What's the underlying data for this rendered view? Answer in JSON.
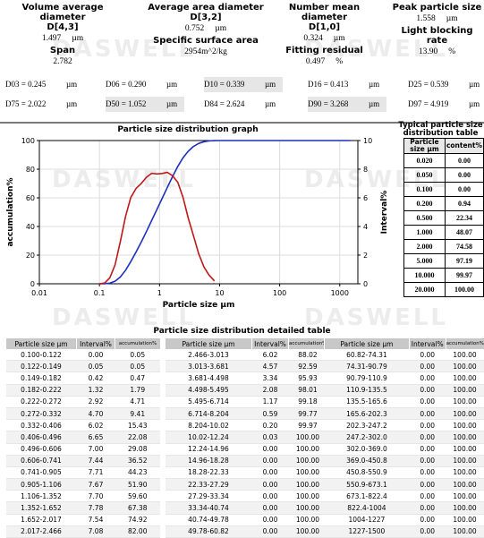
{
  "watermark": "DASWELL",
  "summary": [
    {
      "label1": "Volume average diameter",
      "label2": "D[4,3]",
      "value": "1.497",
      "unit": "µm"
    },
    {
      "label1": "Average area diameter",
      "label2": "D[3,2]",
      "value": "0.752",
      "unit": "µm"
    },
    {
      "label1": "Number mean diameter",
      "label2": "D[1,0]",
      "value": "0.324",
      "unit": "µm"
    },
    {
      "label1": "Peak particle size",
      "label2": "",
      "value": "1.558",
      "unit": "µm"
    }
  ],
  "summary2": [
    {
      "label": "Span",
      "value": "2.782",
      "unit": ""
    },
    {
      "label": "Specific surface area",
      "value": "2954m^2/kg",
      "unit": ""
    },
    {
      "label": "Fitting residual",
      "value": "0.497",
      "unit": "%"
    },
    {
      "label": "Light blocking rate",
      "value": "13.90",
      "unit": "%"
    }
  ],
  "d_values": [
    {
      "label": "D03 = 0.245",
      "unit": "µm"
    },
    {
      "label": "D06 = 0.290",
      "unit": "µm"
    },
    {
      "label": "D10 = 0.339",
      "unit": "µm"
    },
    {
      "label": "D16 = 0.413",
      "unit": "µm"
    },
    {
      "label": "D25 = 0.539",
      "unit": "µm"
    },
    {
      "label": "D75 = 2.022",
      "unit": "µm"
    },
    {
      "label": "D50 = 1.052",
      "unit": "µm"
    },
    {
      "label": "D84 = 2.624",
      "unit": "µm"
    },
    {
      "label": "D90 = 3.268",
      "unit": "µm"
    },
    {
      "label": "D97 = 4.919",
      "unit": "µm"
    }
  ],
  "chart_data": {
    "type": "line",
    "title": "Particle size distribution graph",
    "xlabel": "Particle size µm",
    "ylabel_left": "accumulation%",
    "ylabel_right": "Interval%",
    "x_scale": "log",
    "xlim": [
      0.01,
      2000
    ],
    "ylim_left": [
      0,
      100
    ],
    "ylim_right": [
      0,
      10
    ],
    "x_ticks": [
      "0.01",
      "0.1",
      "1",
      "10",
      "100",
      "1000"
    ],
    "y_ticks_left": [
      "0",
      "20",
      "40",
      "60",
      "80",
      "100"
    ],
    "y_ticks_right": [
      "0",
      "2",
      "4",
      "6",
      "8",
      "10"
    ],
    "grid": true,
    "series": [
      {
        "color": "#1f2fbf",
        "axis": "left",
        "x": [
          0.1,
          0.122,
          0.149,
          0.182,
          0.222,
          0.272,
          0.332,
          0.406,
          0.496,
          0.606,
          0.741,
          0.905,
          1.106,
          1.352,
          1.652,
          2.017,
          2.466,
          3.013,
          3.681,
          4.498,
          5.495,
          6.714,
          8.204,
          10.02,
          1500
        ],
        "y": [
          0,
          0.05,
          0.47,
          1.79,
          4.71,
          9.41,
          15.43,
          22.08,
          29.08,
          36.52,
          44.23,
          51.9,
          59.6,
          67.38,
          74.92,
          82.0,
          88.02,
          92.59,
          95.93,
          98.01,
          99.18,
          99.77,
          99.97,
          100,
          100
        ]
      },
      {
        "color": "#c01818",
        "axis": "right",
        "x": [
          0.1,
          0.122,
          0.149,
          0.182,
          0.222,
          0.272,
          0.332,
          0.406,
          0.496,
          0.606,
          0.741,
          0.905,
          1.106,
          1.352,
          1.652,
          2.017,
          2.466,
          3.013,
          3.681,
          4.498,
          5.495,
          6.714,
          8.204
        ],
        "y": [
          0,
          0.05,
          0.42,
          1.32,
          2.92,
          4.7,
          6.02,
          6.65,
          7.0,
          7.44,
          7.71,
          7.67,
          7.7,
          7.78,
          7.54,
          7.08,
          6.02,
          4.57,
          3.34,
          2.08,
          1.17,
          0.59,
          0.2
        ]
      }
    ]
  },
  "typical_table": {
    "title": "Typical particle size distribution table",
    "headers": [
      "Particle size µm",
      "content%"
    ],
    "rows": [
      [
        "0.020",
        "0.00"
      ],
      [
        "0.050",
        "0.00"
      ],
      [
        "0.100",
        "0.00"
      ],
      [
        "0.200",
        "0.94"
      ],
      [
        "0.500",
        "22.34"
      ],
      [
        "1.000",
        "48.07"
      ],
      [
        "2.000",
        "74.58"
      ],
      [
        "5.000",
        "97.19"
      ],
      [
        "10.000",
        "99.97"
      ],
      [
        "20.000",
        "100.00"
      ]
    ]
  },
  "detail": {
    "title": "Particle size distribution detailed table",
    "headers": [
      "Particle size µm",
      "Interval%",
      "accumulation%"
    ],
    "tables": [
      [
        [
          "0.100-0.122",
          "0.00",
          "0.05"
        ],
        [
          "0.122-0.149",
          "0.05",
          "0.05"
        ],
        [
          "0.149-0.182",
          "0.42",
          "0.47"
        ],
        [
          "0.182-0.222",
          "1.32",
          "1.79"
        ],
        [
          "0.222-0.272",
          "2.92",
          "4.71"
        ],
        [
          "0.272-0.332",
          "4.70",
          "9.41"
        ],
        [
          "0.332-0.406",
          "6.02",
          "15.43"
        ],
        [
          "0.406-0.496",
          "6.65",
          "22.08"
        ],
        [
          "0.496-0.606",
          "7.00",
          "29.08"
        ],
        [
          "0.606-0.741",
          "7.44",
          "36.52"
        ],
        [
          "0.741-0.905",
          "7.71",
          "44.23"
        ],
        [
          "0.905-1.106",
          "7.67",
          "51.90"
        ],
        [
          "1.106-1.352",
          "7.70",
          "59.60"
        ],
        [
          "1.352-1.652",
          "7.78",
          "67.38"
        ],
        [
          "1.652-2.017",
          "7.54",
          "74.92"
        ],
        [
          "2.017-2.466",
          "7.08",
          "82.00"
        ]
      ],
      [
        [
          "2.466-3.013",
          "6.02",
          "88.02"
        ],
        [
          "3.013-3.681",
          "4.57",
          "92.59"
        ],
        [
          "3.681-4.498",
          "3.34",
          "95.93"
        ],
        [
          "4.498-5.495",
          "2.08",
          "98.01"
        ],
        [
          "5.495-6.714",
          "1.17",
          "99.18"
        ],
        [
          "6.714-8.204",
          "0.59",
          "99.77"
        ],
        [
          "8.204-10.02",
          "0.20",
          "99.97"
        ],
        [
          "10.02-12.24",
          "0.03",
          "100.00"
        ],
        [
          "12.24-14.96",
          "0.00",
          "100.00"
        ],
        [
          "14.96-18.28",
          "0.00",
          "100.00"
        ],
        [
          "18.28-22.33",
          "0.00",
          "100.00"
        ],
        [
          "22.33-27.29",
          "0.00",
          "100.00"
        ],
        [
          "27.29-33.34",
          "0.00",
          "100.00"
        ],
        [
          "33.34-40.74",
          "0.00",
          "100.00"
        ],
        [
          "40.74-49.78",
          "0.00",
          "100.00"
        ],
        [
          "49.78-60.82",
          "0.00",
          "100.00"
        ]
      ],
      [
        [
          "60.82-74.31",
          "0.00",
          "100.00"
        ],
        [
          "74.31-90.79",
          "0.00",
          "100.00"
        ],
        [
          "90.79-110.9",
          "0.00",
          "100.00"
        ],
        [
          "110.9-135.5",
          "0.00",
          "100.00"
        ],
        [
          "135.5-165.6",
          "0.00",
          "100.00"
        ],
        [
          "165.6-202.3",
          "0.00",
          "100.00"
        ],
        [
          "202.3-247.2",
          "0.00",
          "100.00"
        ],
        [
          "247.2-302.0",
          "0.00",
          "100.00"
        ],
        [
          "302.0-369.0",
          "0.00",
          "100.00"
        ],
        [
          "369.0-450.8",
          "0.00",
          "100.00"
        ],
        [
          "450.8-550.9",
          "0.00",
          "100.00"
        ],
        [
          "550.9-673.1",
          "0.00",
          "100.00"
        ],
        [
          "673.1-822.4",
          "0.00",
          "100.00"
        ],
        [
          "822.4-1004",
          "0.00",
          "100.00"
        ],
        [
          "1004-1227",
          "0.00",
          "100.00"
        ],
        [
          "1227-1500",
          "0.00",
          "100.00"
        ]
      ]
    ]
  }
}
